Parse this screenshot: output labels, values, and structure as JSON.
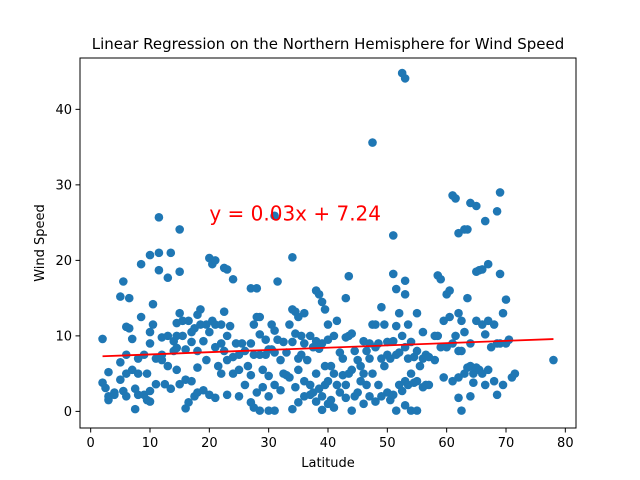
{
  "chart_data": {
    "type": "scatter",
    "title": "Linear Regression on the Northern Hemisphere for Wind Speed",
    "xlabel": "Latitude",
    "ylabel": "Wind Speed",
    "xlim": [
      -1.8,
      81.8
    ],
    "ylim": [
      -2.2,
      46.8
    ],
    "xticks": [
      0,
      10,
      20,
      30,
      40,
      50,
      60,
      70,
      80
    ],
    "yticks": [
      0,
      10,
      20,
      30,
      40
    ],
    "grid": false,
    "colors": {
      "points": "#1f77b4",
      "regression": "#ff0000",
      "annotation": "#ff0000"
    },
    "annotation": {
      "text": "y = 0.03x + 7.24",
      "x": 20,
      "y": 25.3
    },
    "regression": {
      "slope": 0.03,
      "intercept": 7.24,
      "x_range": [
        2,
        78
      ]
    },
    "points": [
      [
        2,
        9.6
      ],
      [
        2,
        3.8
      ],
      [
        2.5,
        3.1
      ],
      [
        3,
        5.2
      ],
      [
        3,
        2
      ],
      [
        3,
        1.5
      ],
      [
        4,
        2.5
      ],
      [
        4,
        2.2
      ],
      [
        5,
        15.2
      ],
      [
        5,
        6.5
      ],
      [
        5,
        4.2
      ],
      [
        5.5,
        17.2
      ],
      [
        5.5,
        2.7
      ],
      [
        6,
        11.2
      ],
      [
        6,
        7.5
      ],
      [
        6,
        5
      ],
      [
        6,
        2
      ],
      [
        6.5,
        15
      ],
      [
        6.5,
        11
      ],
      [
        7,
        9.6
      ],
      [
        7,
        5.5
      ],
      [
        7.5,
        0.3
      ],
      [
        7.5,
        3
      ],
      [
        8,
        7
      ],
      [
        8,
        5
      ],
      [
        8,
        2.2
      ],
      [
        8.5,
        19.5
      ],
      [
        8.5,
        12.5
      ],
      [
        9,
        7.5
      ],
      [
        9,
        2.2
      ],
      [
        9.5,
        5
      ],
      [
        9.5,
        1.5
      ],
      [
        10,
        20.7
      ],
      [
        10,
        10.5
      ],
      [
        10,
        9
      ],
      [
        10,
        2.7
      ],
      [
        10,
        1.3
      ],
      [
        10.5,
        14.2
      ],
      [
        10.5,
        11.5
      ],
      [
        11,
        7
      ],
      [
        11,
        3.6
      ],
      [
        11.5,
        25.7
      ],
      [
        11.5,
        21
      ],
      [
        11.5,
        18.7
      ],
      [
        12,
        9.8
      ],
      [
        12,
        7.5
      ],
      [
        12,
        6.8
      ],
      [
        12.5,
        3.6
      ],
      [
        13,
        17.7
      ],
      [
        13,
        10
      ],
      [
        13,
        6
      ],
      [
        13.5,
        21
      ],
      [
        13.5,
        3
      ],
      [
        14,
        9.3
      ],
      [
        14,
        8
      ],
      [
        14.5,
        11.7
      ],
      [
        14.5,
        10
      ],
      [
        14.5,
        8.4
      ],
      [
        14.5,
        5.5
      ],
      [
        15,
        24.1
      ],
      [
        15,
        18.5
      ],
      [
        15,
        13
      ],
      [
        15,
        3.6
      ],
      [
        15.5,
        12
      ],
      [
        15.5,
        10
      ],
      [
        16,
        8.2
      ],
      [
        16,
        4.2
      ],
      [
        16,
        0.4
      ],
      [
        16.5,
        12
      ],
      [
        16.5,
        1.2
      ],
      [
        17,
        10.5
      ],
      [
        17,
        9.2
      ],
      [
        17,
        4
      ],
      [
        17.5,
        11
      ],
      [
        17.5,
        2
      ],
      [
        18,
        12.8
      ],
      [
        18,
        8
      ],
      [
        18,
        5.8
      ],
      [
        18,
        2.5
      ],
      [
        18.5,
        13.5
      ],
      [
        18.5,
        11.5
      ],
      [
        19,
        9.3
      ],
      [
        19,
        2.8
      ],
      [
        19.5,
        11.5
      ],
      [
        19.5,
        6.8
      ],
      [
        20,
        20.3
      ],
      [
        20,
        10.5
      ],
      [
        20,
        2.2
      ],
      [
        20.5,
        19.5
      ],
      [
        20.5,
        12
      ],
      [
        21,
        20
      ],
      [
        21,
        11.5
      ],
      [
        21,
        8.5
      ],
      [
        21,
        1.8
      ],
      [
        21.5,
        6
      ],
      [
        22,
        11.5
      ],
      [
        22,
        9
      ],
      [
        22,
        5
      ],
      [
        22.5,
        19
      ],
      [
        22.5,
        13.2
      ],
      [
        22.5,
        8
      ],
      [
        23,
        18.8
      ],
      [
        23,
        10
      ],
      [
        23,
        6.8
      ],
      [
        23,
        2.2
      ],
      [
        23.5,
        11.3
      ],
      [
        24,
        17.5
      ],
      [
        24,
        7.2
      ],
      [
        24,
        5
      ],
      [
        24.5,
        9
      ],
      [
        25,
        7.5
      ],
      [
        25,
        5.5
      ],
      [
        25,
        2
      ],
      [
        25.5,
        9
      ],
      [
        26,
        8
      ],
      [
        26,
        3.5
      ],
      [
        26.5,
        6
      ],
      [
        27,
        16.3
      ],
      [
        27,
        9
      ],
      [
        27,
        4.8
      ],
      [
        27,
        1.2
      ],
      [
        27.5,
        11.5
      ],
      [
        27.5,
        7.5
      ],
      [
        27.5,
        0.5
      ],
      [
        28,
        16.3
      ],
      [
        28,
        12.5
      ],
      [
        28,
        2.5
      ],
      [
        28.5,
        12.5
      ],
      [
        28.5,
        10.2
      ],
      [
        28.5,
        7.5
      ],
      [
        28.5,
        0.1
      ],
      [
        29,
        5.5
      ],
      [
        29,
        3.2
      ],
      [
        29.5,
        9.5
      ],
      [
        29.5,
        7.5
      ],
      [
        30,
        8.2
      ],
      [
        30,
        4.7
      ],
      [
        30,
        2
      ],
      [
        30,
        0.1
      ],
      [
        30.5,
        11.5
      ],
      [
        30.5,
        8.2
      ],
      [
        31,
        25.9
      ],
      [
        31,
        10.7
      ],
      [
        31,
        7.8
      ],
      [
        31,
        3.5
      ],
      [
        31,
        0.1
      ],
      [
        31.5,
        17.2
      ],
      [
        31.5,
        9.5
      ],
      [
        32,
        6.8
      ],
      [
        32,
        2.8
      ],
      [
        32.5,
        5
      ],
      [
        32.5,
        9.2
      ],
      [
        33,
        7.8
      ],
      [
        33,
        4.8
      ],
      [
        33.5,
        11.5
      ],
      [
        33.5,
        4.5
      ],
      [
        34,
        20.4
      ],
      [
        34,
        13.5
      ],
      [
        34,
        9.2
      ],
      [
        34,
        0.3
      ],
      [
        34.5,
        13.2
      ],
      [
        34.5,
        10.3
      ],
      [
        34.5,
        3.2
      ],
      [
        35,
        12.5
      ],
      [
        35,
        7
      ],
      [
        35,
        5.5
      ],
      [
        35,
        1.2
      ],
      [
        35.5,
        10
      ],
      [
        35.5,
        7.5
      ],
      [
        36,
        13
      ],
      [
        36,
        9
      ],
      [
        36,
        4
      ],
      [
        36,
        2
      ],
      [
        36.5,
        6.8
      ],
      [
        37,
        10
      ],
      [
        37,
        3.5
      ],
      [
        37,
        2.2
      ],
      [
        37.5,
        8.5
      ],
      [
        37.5,
        2.5
      ],
      [
        38,
        16
      ],
      [
        38,
        9.3
      ],
      [
        38,
        5
      ],
      [
        38,
        1.3
      ],
      [
        38.5,
        15.5
      ],
      [
        38.5,
        8.3
      ],
      [
        38.5,
        3
      ],
      [
        39,
        14.5
      ],
      [
        39,
        9
      ],
      [
        39,
        2
      ],
      [
        39,
        0.2
      ],
      [
        39.5,
        13.5
      ],
      [
        39.5,
        6
      ],
      [
        39.5,
        3.5
      ],
      [
        40,
        11.5
      ],
      [
        40,
        9.5
      ],
      [
        40,
        4
      ],
      [
        40,
        1
      ],
      [
        40.5,
        6
      ],
      [
        40.5,
        1.5
      ],
      [
        41,
        10
      ],
      [
        41,
        5
      ],
      [
        41,
        0.5
      ],
      [
        41.5,
        12
      ],
      [
        41.5,
        3.5
      ],
      [
        42,
        7.8
      ],
      [
        42,
        2.5
      ],
      [
        42.5,
        7
      ],
      [
        42.5,
        4.8
      ],
      [
        43,
        15
      ],
      [
        43,
        9.8
      ],
      [
        43,
        3.5
      ],
      [
        43,
        1.8
      ],
      [
        43.5,
        17.9
      ],
      [
        43.5,
        10
      ],
      [
        43.5,
        5
      ],
      [
        44,
        10.3
      ],
      [
        44,
        5.5
      ],
      [
        44,
        0.1
      ],
      [
        44.5,
        8
      ],
      [
        44.5,
        2
      ],
      [
        45,
        6.8
      ],
      [
        45,
        2.5
      ],
      [
        45.5,
        4
      ],
      [
        45.5,
        6
      ],
      [
        46,
        9.3
      ],
      [
        46,
        5
      ],
      [
        46,
        1
      ],
      [
        46.5,
        8
      ],
      [
        46.5,
        3.5
      ],
      [
        47,
        9
      ],
      [
        47,
        7
      ],
      [
        47,
        2
      ],
      [
        47.5,
        35.6
      ],
      [
        47.5,
        11.5
      ],
      [
        47.5,
        5
      ],
      [
        48,
        11.5
      ],
      [
        48,
        8.5
      ],
      [
        48,
        1.3
      ],
      [
        48.5,
        9
      ],
      [
        48.5,
        3.5
      ],
      [
        49,
        13.8
      ],
      [
        49,
        7
      ],
      [
        49,
        2
      ],
      [
        49.5,
        11.5
      ],
      [
        49.5,
        6
      ],
      [
        50,
        9.2
      ],
      [
        50,
        7.5
      ],
      [
        50,
        2.5
      ],
      [
        50.5,
        7
      ],
      [
        50.5,
        1.5
      ],
      [
        51,
        23.3
      ],
      [
        51,
        18.2
      ],
      [
        51,
        9.3
      ],
      [
        51,
        2.2
      ],
      [
        51.5,
        16.2
      ],
      [
        51.5,
        11.3
      ],
      [
        51.5,
        7.5
      ],
      [
        51.5,
        0.1
      ],
      [
        52,
        13
      ],
      [
        52,
        7.8
      ],
      [
        52,
        3.5
      ],
      [
        52.5,
        44.8
      ],
      [
        52.5,
        10
      ],
      [
        52.5,
        2.7
      ],
      [
        53,
        44.1
      ],
      [
        53,
        17.3
      ],
      [
        53,
        15.5
      ],
      [
        53,
        8.5
      ],
      [
        53,
        4
      ],
      [
        53,
        0.8
      ],
      [
        53.5,
        11.5
      ],
      [
        53.5,
        7
      ],
      [
        53.5,
        3.5
      ],
      [
        54,
        9.2
      ],
      [
        54,
        5
      ],
      [
        54,
        0.1
      ],
      [
        54.5,
        7.2
      ],
      [
        54.5,
        3.8
      ],
      [
        55,
        13
      ],
      [
        55,
        8
      ],
      [
        55,
        4
      ],
      [
        55,
        0.1
      ],
      [
        55.5,
        6
      ],
      [
        56,
        10.5
      ],
      [
        56,
        7
      ],
      [
        56,
        3.2
      ],
      [
        56.5,
        7.5
      ],
      [
        56.5,
        3.5
      ],
      [
        57,
        7.2
      ],
      [
        57,
        3.5
      ],
      [
        58,
        10
      ],
      [
        58,
        6.8
      ],
      [
        58.5,
        18
      ],
      [
        58.5,
        10
      ],
      [
        59,
        17.5
      ],
      [
        59,
        8.5
      ],
      [
        59.5,
        12
      ],
      [
        59.5,
        4.5
      ],
      [
        60,
        15.5
      ],
      [
        60,
        8.5
      ],
      [
        60.5,
        16
      ],
      [
        60.5,
        12.5
      ],
      [
        61,
        28.6
      ],
      [
        61,
        9
      ],
      [
        61,
        4
      ],
      [
        61.5,
        28.2
      ],
      [
        61.5,
        10
      ],
      [
        62,
        23.6
      ],
      [
        62,
        13
      ],
      [
        62,
        8
      ],
      [
        62,
        4.5
      ],
      [
        62,
        1.8
      ],
      [
        62.5,
        12
      ],
      [
        62.5,
        8
      ],
      [
        62.5,
        0.1
      ],
      [
        63,
        24.1
      ],
      [
        63,
        10.5
      ],
      [
        63,
        5
      ],
      [
        63.5,
        24.1
      ],
      [
        63.5,
        15
      ],
      [
        63.5,
        5.8
      ],
      [
        64,
        27.6
      ],
      [
        64,
        9
      ],
      [
        64,
        6
      ],
      [
        64,
        2
      ],
      [
        64.5,
        5
      ],
      [
        64.5,
        3.8
      ],
      [
        65,
        18.5
      ],
      [
        65,
        27.2
      ],
      [
        65,
        12
      ],
      [
        65,
        5.8
      ],
      [
        65.5,
        18.7
      ],
      [
        65.5,
        5.5
      ],
      [
        66,
        18.8
      ],
      [
        66,
        11.5
      ],
      [
        66,
        5
      ],
      [
        66.5,
        25.2
      ],
      [
        66.5,
        10.2
      ],
      [
        66.5,
        3.5
      ],
      [
        67,
        19.5
      ],
      [
        67,
        12
      ],
      [
        67,
        5.5
      ],
      [
        67.5,
        8.5
      ],
      [
        68,
        11.5
      ],
      [
        68,
        4
      ],
      [
        68.5,
        26.5
      ],
      [
        68.5,
        9
      ],
      [
        68.5,
        2.2
      ],
      [
        69,
        29
      ],
      [
        69,
        18.2
      ],
      [
        69,
        9
      ],
      [
        69.5,
        13
      ],
      [
        69.5,
        3.5
      ],
      [
        70,
        14.8
      ],
      [
        70,
        9
      ],
      [
        70.5,
        9.5
      ],
      [
        71,
        4.5
      ],
      [
        71.5,
        5
      ],
      [
        78,
        6.8
      ]
    ]
  }
}
